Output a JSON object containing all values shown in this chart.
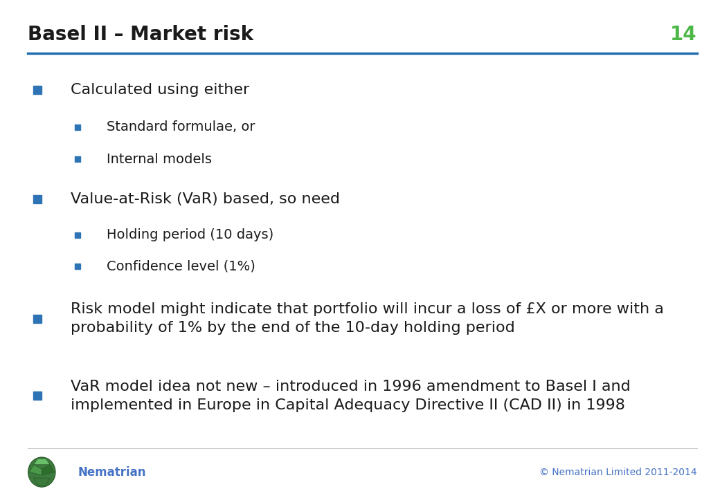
{
  "title": "Basel II – Market risk",
  "slide_number": "14",
  "title_color": "#1a1a1a",
  "title_fontsize": 20,
  "slide_number_color": "#4db848",
  "line_color": "#1f6cb0",
  "background_color": "#ffffff",
  "bullet_color": "#2e74b5",
  "text_color": "#1a1a1a",
  "footer_text": "© Nematrian Limited 2011-2014",
  "footer_color": "#4472c4",
  "brand_name": "Nematrian",
  "brand_color": "#4472c4",
  "l1_bullet_size": 9,
  "l2_bullet_size": 6,
  "l1_fontsize": 16,
  "l2_fontsize": 14,
  "positions": [
    [
      1,
      "Calculated using either",
      0.82
    ],
    [
      2,
      "Standard formulae, or",
      0.745
    ],
    [
      2,
      "Internal models",
      0.68
    ],
    [
      1,
      "Value-at-Risk (VaR) based, so need",
      0.6
    ],
    [
      2,
      "Holding period (10 days)",
      0.528
    ],
    [
      2,
      "Confidence level (1%)",
      0.465
    ],
    [
      1,
      "Risk model might indicate that portfolio will incur a loss of £X or more with a\nprobability of 1% by the end of the 10-day holding period",
      0.36
    ],
    [
      1,
      "VaR model idea not new – introduced in 1996 amendment to Basel I and\nimplemented in Europe in Capital Adequacy Directive II (CAD II) in 1998",
      0.205
    ]
  ]
}
